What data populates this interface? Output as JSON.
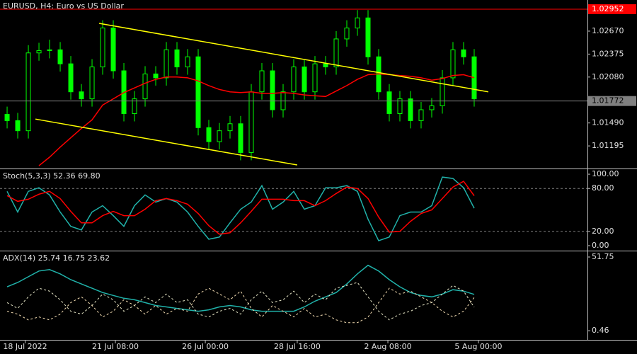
{
  "chart_data": [
    {
      "type": "candlestick",
      "title": "EURUSD, H4:  Euro vs US Dollar",
      "color": "#00ff00",
      "xlim": [
        -0.67,
        54.67
      ],
      "ylim": [
        1.00923,
        1.0307
      ],
      "yticks": [
        {
          "value": 1.0267,
          "label": "1.02670"
        },
        1.02375,
        {
          "value": 1.0208,
          "label": "1.02080"
        },
        {
          "value": 1.0149,
          "label": "1.01490"
        },
        1.01195
      ],
      "open": [
        1.016,
        1.0152,
        1.0139,
        1.0239,
        1.0242,
        1.0243,
        1.0225,
        1.0189,
        1.018,
        1.0221,
        1.0271,
        1.0216,
        1.0161,
        1.018,
        1.0212,
        1.0207,
        1.0243,
        1.0221,
        1.0234,
        1.0143,
        1.0125,
        1.0139,
        1.0148,
        1.0111,
        1.0189,
        1.0216,
        1.0166,
        1.0189,
        1.0221,
        1.0189,
        1.0225,
        1.0221,
        1.0257,
        1.0271,
        1.0284,
        1.0234,
        1.0189,
        1.0161,
        1.018,
        1.0152,
        1.0166,
        1.0171,
        1.0207,
        1.0243,
        1.0234
      ],
      "high": [
        1.017,
        1.0162,
        1.0249,
        1.0252,
        1.0256,
        1.0253,
        1.0235,
        1.0199,
        1.0231,
        1.0281,
        1.0281,
        1.0226,
        1.019,
        1.0222,
        1.0222,
        1.0253,
        1.0253,
        1.0244,
        1.0244,
        1.0153,
        1.0149,
        1.0158,
        1.0158,
        1.0199,
        1.0226,
        1.0226,
        1.0199,
        1.0231,
        1.0231,
        1.0235,
        1.0235,
        1.0267,
        1.0281,
        1.0294,
        1.0294,
        1.0244,
        1.0199,
        1.019,
        1.019,
        1.0176,
        1.0181,
        1.0217,
        1.0253,
        1.0253,
        1.0244
      ],
      "low": [
        1.0142,
        1.0129,
        1.0129,
        1.0229,
        1.0232,
        1.0215,
        1.0179,
        1.017,
        1.017,
        1.0211,
        1.0206,
        1.0151,
        1.0151,
        1.017,
        1.0197,
        1.0197,
        1.0211,
        1.0211,
        1.0133,
        1.0115,
        1.0115,
        1.0129,
        1.0101,
        1.0101,
        1.0179,
        1.0156,
        1.0156,
        1.0179,
        1.0179,
        1.0179,
        1.0211,
        1.0211,
        1.0247,
        1.0261,
        1.0224,
        1.0179,
        1.0151,
        1.0151,
        1.0142,
        1.0142,
        1.0156,
        1.0161,
        1.0197,
        1.0224,
        1.017
      ],
      "close": [
        1.0152,
        1.0139,
        1.0239,
        1.0242,
        1.0243,
        1.0225,
        1.0189,
        1.018,
        1.0221,
        1.0271,
        1.0216,
        1.0161,
        1.018,
        1.0212,
        1.0207,
        1.0243,
        1.0221,
        1.0234,
        1.0143,
        1.0125,
        1.0139,
        1.0148,
        1.0111,
        1.0189,
        1.0216,
        1.0166,
        1.0189,
        1.0221,
        1.0189,
        1.0225,
        1.0221,
        1.0257,
        1.0271,
        1.0284,
        1.0234,
        1.0189,
        1.0161,
        1.018,
        1.0152,
        1.0166,
        1.0171,
        1.0207,
        1.0243,
        1.0234,
        1.018
      ],
      "overlay": {
        "color": "#ff0000",
        "values": [
          null,
          null,
          null,
          1.0094,
          1.0105,
          1.0118,
          1.013,
          1.0142,
          1.0153,
          1.0172,
          1.018,
          1.0188,
          1.0194,
          1.02,
          1.0205,
          1.0208,
          1.0208,
          1.0207,
          1.0203,
          1.0197,
          1.0192,
          1.0189,
          1.0188,
          1.0189,
          1.0187,
          1.0187,
          1.0188,
          1.0187,
          1.0185,
          1.0184,
          1.0183,
          1.019,
          1.0197,
          1.0205,
          1.0211,
          1.0212,
          1.0211,
          1.021,
          1.0209,
          1.0207,
          1.0204,
          1.0206,
          1.021,
          1.0211,
          1.0207
        ]
      },
      "trendlines": {
        "color": "#ffff00",
        "lines": [
          {
            "x": [
              8.67,
              45.33
            ],
            "y": [
              1.0277,
              1.0189
            ]
          },
          {
            "x": [
              2.67,
              27.33
            ],
            "y": [
              1.0154,
              1.0095
            ]
          }
        ]
      },
      "bid_line": {
        "value": 1.01772,
        "color": "#808080"
      },
      "high_line": {
        "value": 1.02952,
        "color": "#ff0000"
      }
    },
    {
      "type": "line",
      "title": "Stoch(5,3,3) 52.36 69.80",
      "xlim": [
        -0.67,
        54.67
      ],
      "ylim": [
        -5,
        106
      ],
      "yticks": [
        {
          "value": 100,
          "label": "100.00"
        },
        {
          "value": 80,
          "label": "80.00"
        },
        {
          "value": 20,
          "label": "20.00"
        },
        {
          "value": 0,
          "label": "0.00"
        }
      ],
      "levels": [
        80,
        20
      ],
      "series": [
        {
          "color": "#20b2aa",
          "dash": false,
          "values": [
            76,
            47,
            76,
            81,
            71,
            47,
            27,
            22,
            47,
            56,
            42,
            27,
            56,
            71,
            61,
            66,
            61,
            47,
            27,
            9,
            12,
            32,
            51,
            61,
            84,
            51,
            61,
            76,
            51,
            56,
            81,
            81,
            84,
            76,
            37,
            7,
            12,
            42,
            47,
            47,
            56,
            96,
            94,
            81,
            52.36
          ]
        },
        {
          "color": "#ff0000",
          "dash": false,
          "values": [
            70,
            62,
            65,
            72,
            76,
            66,
            48,
            32,
            32,
            42,
            48,
            42,
            42,
            51,
            63,
            66,
            63,
            58,
            45,
            28,
            16,
            18,
            32,
            48,
            65,
            65,
            65,
            63,
            63,
            56,
            63,
            73,
            82,
            80,
            66,
            40,
            19,
            20,
            34,
            45,
            50,
            66,
            82,
            90,
            69.8
          ]
        }
      ]
    },
    {
      "type": "line",
      "title": "ADX(14) 25.74 16.75 23.62",
      "xlim": [
        -0.67,
        54.67
      ],
      "ylim": [
        -5.9,
        55.2
      ],
      "yticks": [
        51.75,
        0.46
      ],
      "xticks": [
        {
          "value": 1.7,
          "label": "18 Jul 2022"
        },
        {
          "value": 10.2,
          "label": "21 Jul 08:00"
        },
        {
          "value": 18.67,
          "label": "26 Jul 00:00"
        },
        {
          "value": 27.33,
          "label": "28 Jul 16:00"
        },
        {
          "value": 35.87,
          "label": "2 Aug 08:00"
        },
        {
          "value": 44.4,
          "label": "5 Aug 00:00"
        }
      ],
      "series": [
        {
          "color": "#20b2aa",
          "dash": false,
          "values": [
            31,
            34,
            38,
            42,
            43,
            40,
            36,
            33,
            30,
            27,
            25,
            23,
            22,
            20,
            18,
            17,
            16,
            15,
            14,
            15,
            17,
            18,
            17,
            15,
            14,
            14,
            14,
            14,
            17,
            21,
            24,
            27,
            33,
            40,
            46,
            42,
            36,
            31,
            27,
            25,
            24,
            26,
            29,
            28,
            25.74
          ]
        },
        {
          "color": "#e8e8c8",
          "dash": true,
          "values": [
            20,
            16,
            24,
            30,
            28,
            22,
            14,
            12,
            18,
            26,
            22,
            14,
            18,
            24,
            20,
            26,
            20,
            22,
            12,
            10,
            14,
            16,
            12,
            22,
            28,
            20,
            22,
            28,
            20,
            26,
            22,
            30,
            32,
            34,
            24,
            14,
            8,
            12,
            14,
            18,
            20,
            26,
            32,
            28,
            16.75
          ]
        },
        {
          "color": "#f5deb3",
          "dash": true,
          "values": [
            14,
            12,
            8,
            10,
            8,
            12,
            20,
            24,
            18,
            10,
            14,
            22,
            18,
            12,
            18,
            12,
            16,
            14,
            26,
            30,
            26,
            22,
            28,
            16,
            10,
            18,
            14,
            10,
            16,
            10,
            12,
            8,
            6,
            6,
            10,
            20,
            30,
            26,
            28,
            24,
            20,
            14,
            10,
            14,
            23.62
          ]
        }
      ]
    }
  ]
}
